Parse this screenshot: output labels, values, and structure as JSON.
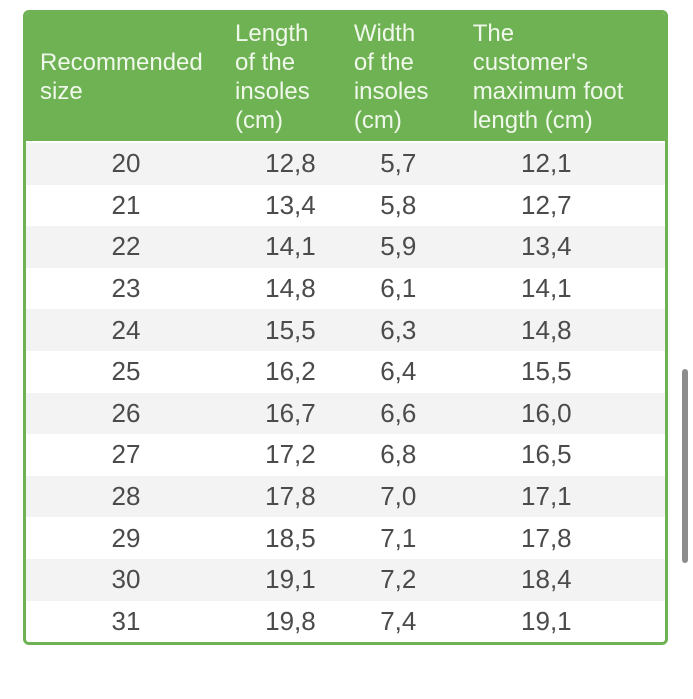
{
  "chart_data": {
    "type": "table",
    "columns": [
      "Recommended size",
      "Length of the insoles (cm)",
      "Width of the insoles (cm)",
      "The customer's maximum foot length (cm)"
    ],
    "rows": [
      [
        "20",
        "12,8",
        "5,7",
        "12,1"
      ],
      [
        "21",
        "13,4",
        "5,8",
        "12,7"
      ],
      [
        "22",
        "14,1",
        "5,9",
        "13,4"
      ],
      [
        "23",
        "14,8",
        "6,1",
        "14,1"
      ],
      [
        "24",
        "15,5",
        "6,3",
        "14,8"
      ],
      [
        "25",
        "16,2",
        "6,4",
        "15,5"
      ],
      [
        "26",
        "16,7",
        "6,6",
        "16,0"
      ],
      [
        "27",
        "17,2",
        "6,8",
        "16,5"
      ],
      [
        "28",
        "17,8",
        "7,0",
        "17,1"
      ],
      [
        "29",
        "18,5",
        "7,1",
        "17,8"
      ],
      [
        "30",
        "19,1",
        "7,2",
        "18,4"
      ],
      [
        "31",
        "19,8",
        "7,4",
        "19,1"
      ]
    ],
    "decimal_separator": ","
  },
  "table": {
    "header_lines": [
      "Recommended\nsize",
      "Length\nof the\ninsoles\n(cm)",
      "Width\nof the\ninsoles\n(cm)",
      "The\ncustomer's\nmaximum foot\nlength (cm)"
    ]
  },
  "colors": {
    "accent_green": "#6fb254",
    "header_text": "#eff8ea",
    "body_text": "#4b4b4b",
    "row_stripe": "#f3f3f3",
    "scrollbar_thumb": "#8c8c8c"
  }
}
